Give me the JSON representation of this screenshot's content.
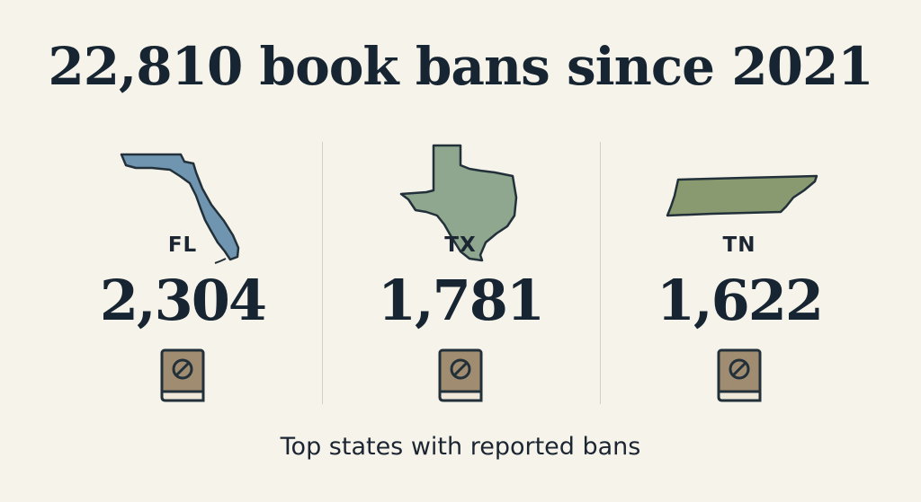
{
  "headline": "22,810 book bans since 2021",
  "states": [
    {
      "abbr": "FL",
      "count": "2,304",
      "icon": "florida-map-icon",
      "color": "#6f95b0"
    },
    {
      "abbr": "TX",
      "count": "1,781",
      "icon": "texas-map-icon",
      "color": "#8fa78f"
    },
    {
      "abbr": "TN",
      "count": "1,622",
      "icon": "tennessee-map-icon",
      "color": "#8a9a70"
    }
  ],
  "book_icon": "banned-book-icon",
  "book_color": "#a08c70",
  "caption": "Top states with reported bans"
}
